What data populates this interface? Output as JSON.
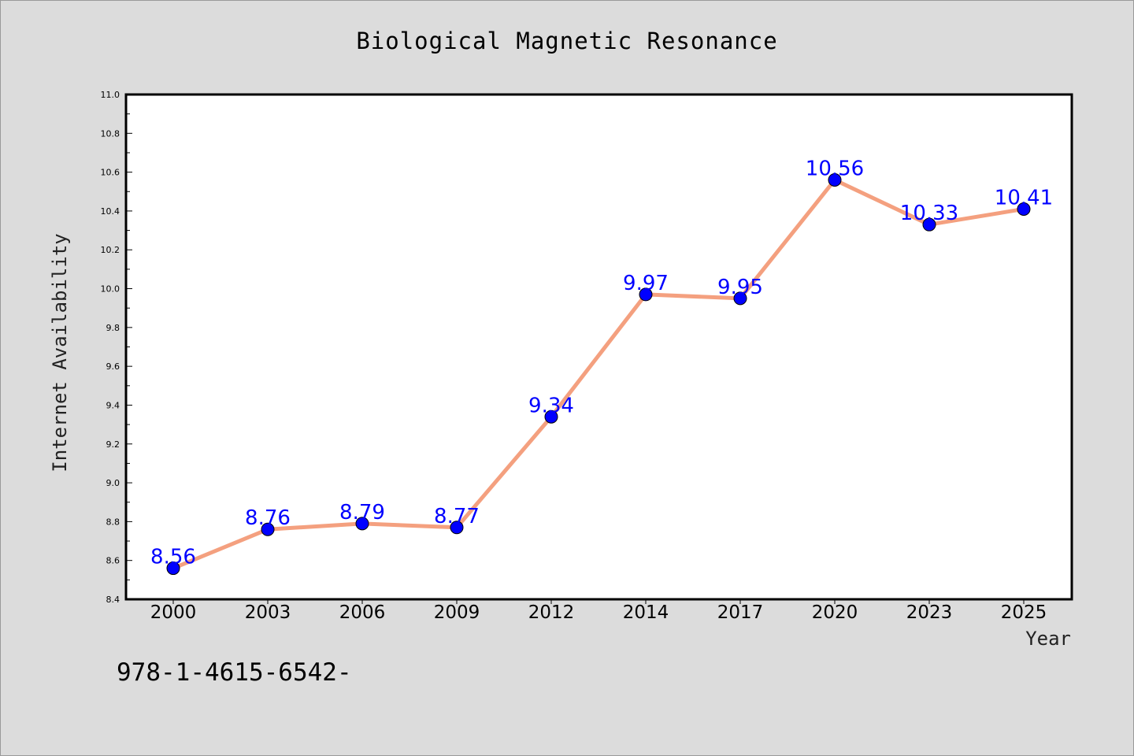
{
  "chart_data": {
    "type": "line",
    "title": "Biological Magnetic Resonance",
    "xlabel": "Year",
    "ylabel": "Internet Availability",
    "categories": [
      "2000",
      "2003",
      "2006",
      "2009",
      "2012",
      "2014",
      "2017",
      "2020",
      "2023",
      "2025"
    ],
    "series": [
      {
        "values": [
          8.56,
          8.76,
          8.79,
          8.77,
          9.34,
          9.97,
          9.95,
          10.56,
          10.33,
          10.41
        ],
        "data_labels": [
          "8.56",
          "8.76",
          "8.79",
          "8.77",
          "9.34",
          "9.97",
          "9.95",
          "10.56",
          "10.33",
          "10.41"
        ]
      }
    ],
    "ylim": [
      8.4,
      11.0
    ],
    "yticks": [
      "8.4",
      "8.6",
      "8.8",
      "9.0",
      "9.2",
      "9.4",
      "9.6",
      "9.8",
      "10.0",
      "10.2",
      "10.4",
      "10.6",
      "10.8",
      "11.0"
    ],
    "grid": false,
    "legend": "none",
    "colors": {
      "line": "#f4a07f",
      "marker": "#0000ff",
      "data_label": "#0000ff",
      "background": "#dcdcdc",
      "plot_background": "#ffffff"
    }
  },
  "footer": {
    "text": "978-1-4615-6542-"
  }
}
